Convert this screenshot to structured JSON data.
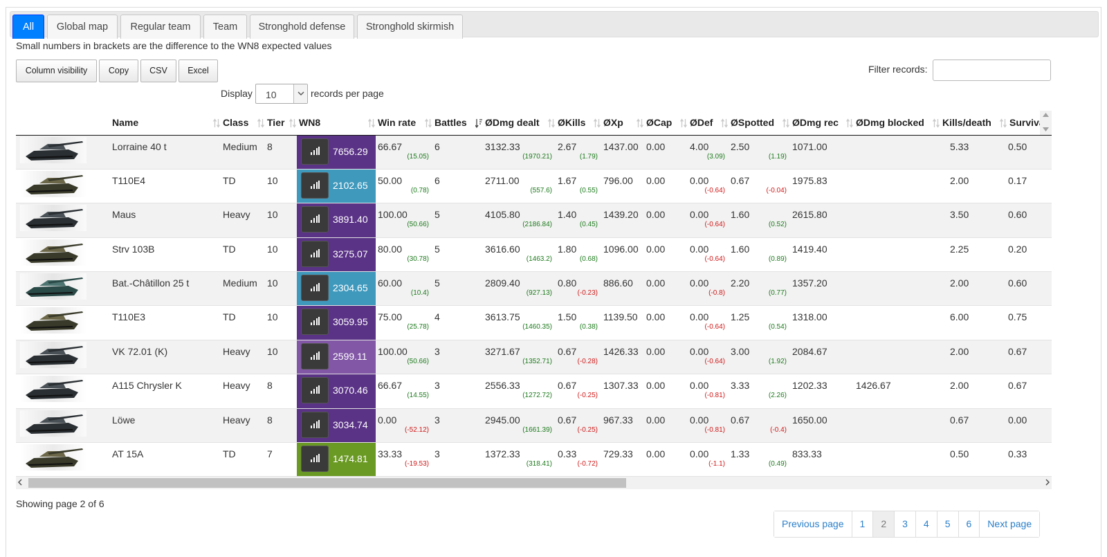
{
  "tabs": [
    {
      "label": "All",
      "active": true
    },
    {
      "label": "Global map",
      "active": false
    },
    {
      "label": "Regular team",
      "active": false
    },
    {
      "label": "Team",
      "active": false
    },
    {
      "label": "Stronghold defense",
      "active": false
    },
    {
      "label": "Stronghold skirmish",
      "active": false
    }
  ],
  "note": "Small numbers in brackets are the difference to the WN8 expected values",
  "toolbar": {
    "column_visibility": "Column visibility",
    "copy": "Copy",
    "csv": "CSV",
    "excel": "Excel"
  },
  "filter": {
    "label": "Filter records:",
    "value": ""
  },
  "length": {
    "display": "Display",
    "value": "10",
    "suffix": "records per page"
  },
  "columns": [
    "",
    "Name",
    "Class",
    "Tier",
    "WN8",
    "Win rate",
    "Battles",
    "ØDmg dealt",
    "ØKills",
    "ØXp",
    "ØCap",
    "ØDef",
    "ØSpotted",
    "ØDmg rec",
    "ØDmg blocked",
    "Kills/death",
    "Survival"
  ],
  "colors": {
    "tab_active": "#007fff",
    "wn8_purple": "#5a3286",
    "wn8_violet": "#8157a6",
    "wn8_blue": "#3f99bd",
    "wn8_green": "#6b9a24",
    "diff_positive": "#1d7a1d",
    "diff_negative": "#d01818"
  },
  "rows": [
    {
      "name": "Lorraine 40 t",
      "class": "Medium",
      "tier": "8",
      "wn8": "7656.29",
      "wn8_color": "#5a3286",
      "win": "66.67",
      "win_d": "(15.05)",
      "battles": "6",
      "dmg": "3132.33",
      "dmg_d": "(1970.21)",
      "kills": "2.67",
      "kills_d": "(1.79)",
      "xp": "1437.00",
      "cap": "0.00",
      "def": "4.00",
      "def_d": "(3.09)",
      "spot": "2.50",
      "spot_d": "(1.19)",
      "rec": "1071.00",
      "blocked": "",
      "kd": "5.33",
      "surv": "0.50",
      "tank": "dark"
    },
    {
      "name": "T110E4",
      "class": "TD",
      "tier": "10",
      "wn8": "2102.65",
      "wn8_color": "#3f99bd",
      "win": "50.00",
      "win_d": "(0.78)",
      "battles": "6",
      "dmg": "2711.00",
      "dmg_d": "(557.6)",
      "kills": "1.67",
      "kills_d": "(0.55)",
      "xp": "796.00",
      "cap": "0.00",
      "def": "0.00",
      "def_d": "(-0.64)",
      "spot": "0.67",
      "spot_d": "(-0.04)",
      "rec": "1975.83",
      "blocked": "",
      "kd": "2.00",
      "surv": "0.17",
      "tank": "camo"
    },
    {
      "name": "Maus",
      "class": "Heavy",
      "tier": "10",
      "wn8": "3891.40",
      "wn8_color": "#5a3286",
      "win": "100.00",
      "win_d": "(50.66)",
      "battles": "5",
      "dmg": "4105.80",
      "dmg_d": "(2186.84)",
      "kills": "1.40",
      "kills_d": "(0.45)",
      "xp": "1439.20",
      "cap": "0.00",
      "def": "0.00",
      "def_d": "(-0.64)",
      "spot": "1.60",
      "spot_d": "(0.52)",
      "rec": "2615.80",
      "blocked": "",
      "kd": "3.50",
      "surv": "0.60",
      "tank": "dark"
    },
    {
      "name": "Strv 103B",
      "class": "TD",
      "tier": "10",
      "wn8": "3275.07",
      "wn8_color": "#5a3286",
      "win": "80.00",
      "win_d": "(30.78)",
      "battles": "5",
      "dmg": "3616.60",
      "dmg_d": "(1463.2)",
      "kills": "1.80",
      "kills_d": "(0.68)",
      "xp": "1096.00",
      "cap": "0.00",
      "def": "0.00",
      "def_d": "(-0.64)",
      "spot": "1.60",
      "spot_d": "(0.89)",
      "rec": "1419.40",
      "blocked": "",
      "kd": "2.25",
      "surv": "0.20",
      "tank": "camo"
    },
    {
      "name": "Bat.-Châtillon 25 t",
      "class": "Medium",
      "tier": "10",
      "wn8": "2304.65",
      "wn8_color": "#3f99bd",
      "win": "60.00",
      "win_d": "(10.4)",
      "battles": "5",
      "dmg": "2809.40",
      "dmg_d": "(927.13)",
      "kills": "0.80",
      "kills_d": "(-0.23)",
      "xp": "886.60",
      "cap": "0.00",
      "def": "0.00",
      "def_d": "(-0.8)",
      "spot": "2.20",
      "spot_d": "(0.77)",
      "rec": "1357.20",
      "blocked": "",
      "kd": "2.00",
      "surv": "0.60",
      "tank": "teal"
    },
    {
      "name": "T110E3",
      "class": "TD",
      "tier": "10",
      "wn8": "3059.95",
      "wn8_color": "#5a3286",
      "win": "75.00",
      "win_d": "(25.78)",
      "battles": "4",
      "dmg": "3613.75",
      "dmg_d": "(1460.35)",
      "kills": "1.50",
      "kills_d": "(0.38)",
      "xp": "1139.50",
      "cap": "0.00",
      "def": "0.00",
      "def_d": "(-0.64)",
      "spot": "1.25",
      "spot_d": "(0.54)",
      "rec": "1318.00",
      "blocked": "",
      "kd": "6.00",
      "surv": "0.75",
      "tank": "camo"
    },
    {
      "name": "VK 72.01 (K)",
      "class": "Heavy",
      "tier": "10",
      "wn8": "2599.11",
      "wn8_color": "#8157a6",
      "win": "100.00",
      "win_d": "(50.66)",
      "battles": "3",
      "dmg": "3271.67",
      "dmg_d": "(1352.71)",
      "kills": "0.67",
      "kills_d": "(-0.28)",
      "xp": "1426.33",
      "cap": "0.00",
      "def": "0.00",
      "def_d": "(-0.64)",
      "spot": "3.00",
      "spot_d": "(1.92)",
      "rec": "2084.67",
      "blocked": "",
      "kd": "2.00",
      "surv": "0.67",
      "tank": "dark"
    },
    {
      "name": "A115 Chrysler K",
      "class": "Heavy",
      "tier": "8",
      "wn8": "3070.46",
      "wn8_color": "#5a3286",
      "win": "66.67",
      "win_d": "(14.55)",
      "battles": "3",
      "dmg": "2556.33",
      "dmg_d": "(1272.72)",
      "kills": "0.67",
      "kills_d": "(-0.25)",
      "xp": "1307.33",
      "cap": "0.00",
      "def": "0.00",
      "def_d": "(-0.81)",
      "spot": "3.33",
      "spot_d": "(2.26)",
      "rec": "1202.33",
      "blocked": "1426.67",
      "kd": "2.00",
      "surv": "0.67",
      "tank": "dark"
    },
    {
      "name": "Löwe",
      "class": "Heavy",
      "tier": "8",
      "wn8": "3034.74",
      "wn8_color": "#5a3286",
      "win": "0.00",
      "win_d": "(-52.12)",
      "battles": "3",
      "dmg": "2945.00",
      "dmg_d": "(1661.39)",
      "kills": "0.67",
      "kills_d": "(-0.25)",
      "xp": "967.33",
      "cap": "0.00",
      "def": "0.00",
      "def_d": "(-0.81)",
      "spot": "0.67",
      "spot_d": "(-0.4)",
      "rec": "1650.00",
      "blocked": "",
      "kd": "0.67",
      "surv": "0.00",
      "tank": "dark"
    },
    {
      "name": "AT 15A",
      "class": "TD",
      "tier": "7",
      "wn8": "1474.81",
      "wn8_color": "#6b9a24",
      "win": "33.33",
      "win_d": "(-19.53)",
      "battles": "3",
      "dmg": "1372.33",
      "dmg_d": "(318.41)",
      "kills": "0.33",
      "kills_d": "(-0.72)",
      "xp": "729.33",
      "cap": "0.00",
      "def": "0.00",
      "def_d": "(-1.1)",
      "spot": "1.33",
      "spot_d": "(0.49)",
      "rec": "833.33",
      "blocked": "",
      "kd": "0.50",
      "surv": "0.33",
      "tank": "camo"
    }
  ],
  "info": "Showing page 2 of 6",
  "pagination": {
    "previous": "Previous page",
    "pages": [
      "1",
      "2",
      "3",
      "4",
      "5",
      "6"
    ],
    "current": "2",
    "next": "Next page"
  }
}
